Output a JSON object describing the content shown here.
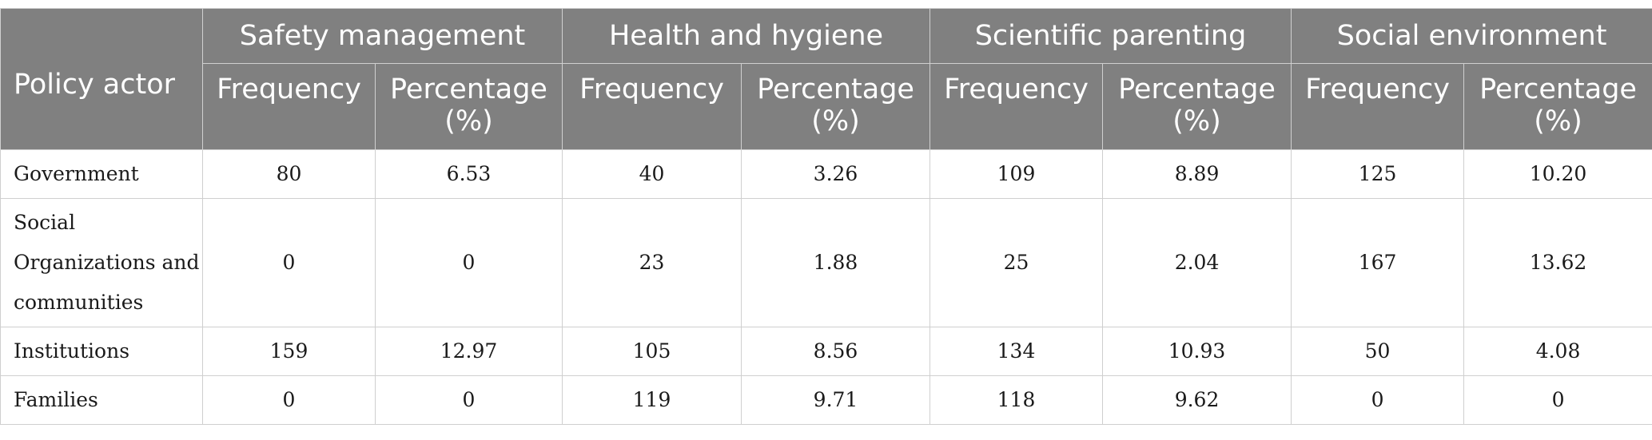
{
  "table": {
    "actor_header": "Policy actor",
    "groups": [
      "Safety management",
      "Health and hygiene",
      "Scientific parenting",
      "Social environment"
    ],
    "sub_headers": [
      "Frequency",
      "Percentage (%)"
    ],
    "rows": [
      {
        "actor": "Government",
        "values": [
          "80",
          "6.53",
          "40",
          "3.26",
          "109",
          "8.89",
          "125",
          "10.20"
        ]
      },
      {
        "actor": "Social Organizations and communities",
        "values": [
          "0",
          "0",
          "23",
          "1.88",
          "25",
          "2.04",
          "167",
          "13.62"
        ]
      },
      {
        "actor": "Institutions",
        "values": [
          "159",
          "12.97",
          "105",
          "8.56",
          "134",
          "10.93",
          "50",
          "4.08"
        ]
      },
      {
        "actor": "Families",
        "values": [
          "0",
          "0",
          "119",
          "9.71",
          "118",
          "9.62",
          "0",
          "0"
        ]
      }
    ]
  }
}
